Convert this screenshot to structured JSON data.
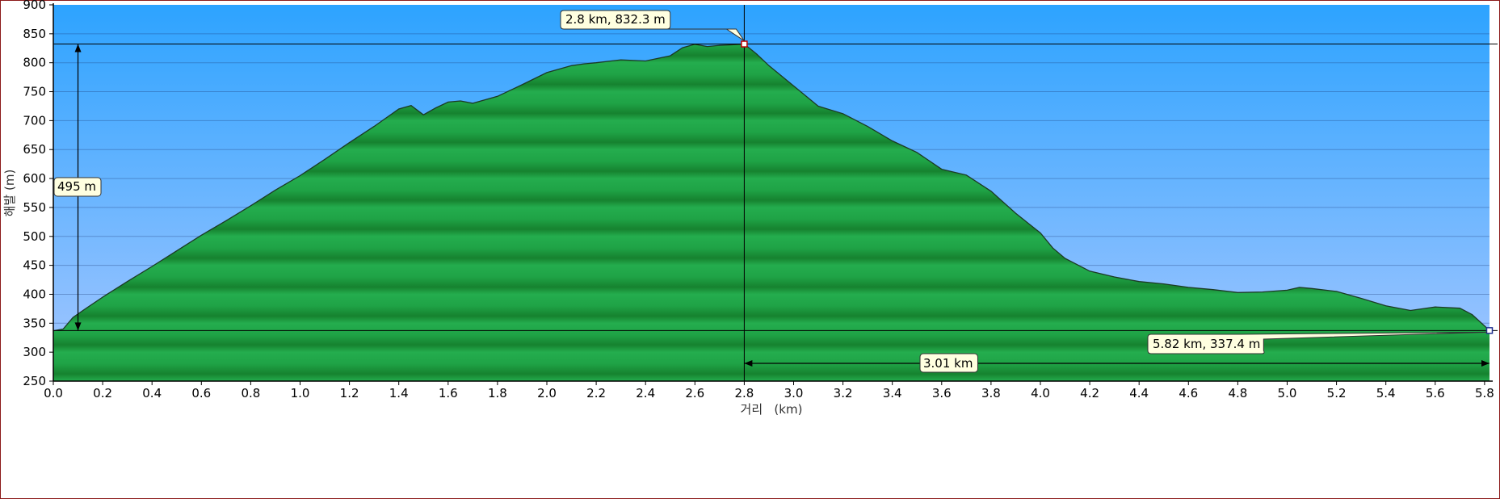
{
  "chart_data": {
    "type": "area",
    "xlabel": "거리   (km)",
    "ylabel": "해발 (m)",
    "xlim": [
      0,
      5.82
    ],
    "ylim": [
      250,
      900
    ],
    "x_ticks": [
      0.0,
      0.2,
      0.4,
      0.6,
      0.8,
      1.0,
      1.2,
      1.4,
      1.6,
      1.8,
      2.0,
      2.2,
      2.4,
      2.6,
      2.8,
      3.0,
      3.2,
      3.4,
      3.6,
      3.8,
      4.0,
      4.2,
      4.4,
      4.6,
      4.8,
      5.0,
      5.2,
      5.4,
      5.6,
      5.8
    ],
    "x_tick_labels": [
      "0.0",
      "0.2",
      "0.4",
      "0.6",
      "0.8",
      "1.0",
      "1.2",
      "1.4",
      "1.6",
      "1.8",
      "2.0",
      "2.2",
      "2.4",
      "2.6",
      "2.8",
      "3.0",
      "3.2",
      "3.4",
      "3.6",
      "3.8",
      "4.0",
      "4.2",
      "4.4",
      "4.6",
      "4.8",
      "5.0",
      "5.2",
      "5.4",
      "5.6",
      "5.8"
    ],
    "y_ticks": [
      250,
      300,
      350,
      400,
      450,
      500,
      550,
      600,
      650,
      700,
      750,
      800,
      850,
      900
    ],
    "y_tick_labels": [
      "250",
      "300",
      "350",
      "400",
      "450",
      "500",
      "550",
      "600",
      "650",
      "700",
      "750",
      "800",
      "850",
      "900"
    ],
    "grid": true,
    "colors": {
      "sky_top": "#2da3ff",
      "sky_bottom": "#a6c7ff",
      "terrain_light": "#22aa4a",
      "terrain_dark": "#178a34",
      "outline": "#1c3a24",
      "callout_bg": "#ffffe0"
    },
    "series": [
      {
        "x": [
          0.0,
          0.04,
          0.08,
          0.12,
          0.2,
          0.3,
          0.4,
          0.5,
          0.6,
          0.7,
          0.8,
          0.9,
          1.0,
          1.1,
          1.2,
          1.3,
          1.4,
          1.45,
          1.5,
          1.55,
          1.6,
          1.65,
          1.7,
          1.8,
          1.9,
          2.0,
          2.1,
          2.15,
          2.2,
          2.3,
          2.4,
          2.5,
          2.55,
          2.6,
          2.65,
          2.7,
          2.75,
          2.8,
          2.85,
          2.9,
          3.0,
          3.1,
          3.2,
          3.3,
          3.4,
          3.5,
          3.6,
          3.7,
          3.8,
          3.9,
          4.0,
          4.05,
          4.1,
          4.2,
          4.3,
          4.4,
          4.5,
          4.6,
          4.7,
          4.8,
          4.9,
          5.0,
          5.05,
          5.1,
          5.2,
          5.3,
          5.4,
          5.5,
          5.6,
          5.7,
          5.75,
          5.82
        ],
        "y": [
          337,
          340,
          360,
          372,
          395,
          422,
          448,
          475,
          502,
          527,
          553,
          580,
          605,
          633,
          662,
          690,
          720,
          726,
          710,
          722,
          732,
          734,
          730,
          742,
          762,
          783,
          795,
          798,
          800,
          805,
          803,
          812,
          826,
          832,
          828,
          830,
          831,
          832.3,
          815,
          795,
          760,
          725,
          712,
          690,
          665,
          645,
          616,
          606,
          578,
          540,
          506,
          480,
          462,
          440,
          430,
          422,
          418,
          412,
          408,
          403,
          404,
          407,
          412,
          410,
          405,
          393,
          380,
          372,
          378,
          376,
          365,
          337.4
        ]
      }
    ],
    "annotations": {
      "peak_label": "2.8 km, 832.3 m",
      "end_label": "5.82 km, 337.4 m",
      "elevation_gain_label": "495 m",
      "distance_label": "3.01 km"
    },
    "markers": {
      "peak": {
        "x": 2.8,
        "y": 832.3
      },
      "end": {
        "x": 5.82,
        "y": 337.4
      },
      "gain_from": 337.4,
      "gain_to": 832.3,
      "gain_at_x": 0.1
    }
  }
}
